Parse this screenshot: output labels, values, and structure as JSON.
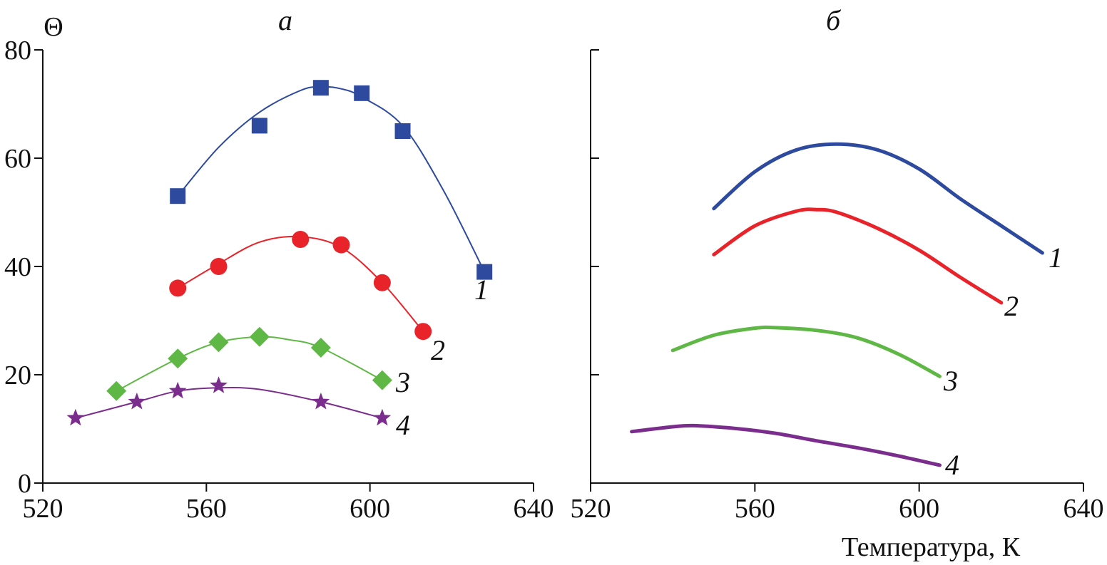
{
  "chart_data": [
    {
      "type": "line",
      "panel_label": "а",
      "ylabel": "Θ",
      "xlabel": "",
      "xlim": [
        520,
        640
      ],
      "ylim": [
        0,
        80
      ],
      "x_ticks": [
        "520",
        "560",
        "600",
        "640"
      ],
      "y_ticks": [
        "0",
        "20",
        "40",
        "60",
        "80"
      ],
      "series": [
        {
          "name": "1",
          "color": "#2e4a9e",
          "marker": "square",
          "points": [
            [
              553,
              53
            ],
            [
              573,
              66
            ],
            [
              588,
              73
            ],
            [
              598,
              72
            ],
            [
              608,
              65
            ],
            [
              628,
              39
            ]
          ],
          "curve": [
            [
              553,
              53
            ],
            [
              563,
              62
            ],
            [
              573,
              68.5
            ],
            [
              583,
              72.5
            ],
            [
              588,
              73.2
            ],
            [
              593,
              72.8
            ],
            [
              598,
              71.3
            ],
            [
              608,
              66
            ],
            [
              618,
              54
            ],
            [
              628,
              39
            ]
          ]
        },
        {
          "name": "2",
          "color": "#e8232a",
          "marker": "circle",
          "points": [
            [
              553,
              36
            ],
            [
              563,
              40
            ],
            [
              583,
              45
            ],
            [
              593,
              44
            ],
            [
              603,
              37
            ],
            [
              613,
              28
            ]
          ],
          "curve": [
            [
              553,
              36
            ],
            [
              563,
              40.5
            ],
            [
              573,
              44.5
            ],
            [
              583,
              45.5
            ],
            [
              593,
              43.5
            ],
            [
              603,
              37
            ],
            [
              613,
              28
            ]
          ]
        },
        {
          "name": "3",
          "color": "#5fb846",
          "marker": "diamond",
          "points": [
            [
              538,
              17
            ],
            [
              553,
              23
            ],
            [
              563,
              26
            ],
            [
              573,
              27
            ],
            [
              588,
              25
            ],
            [
              603,
              19
            ]
          ],
          "curve": [
            [
              538,
              17
            ],
            [
              553,
              23
            ],
            [
              563,
              26
            ],
            [
              573,
              27
            ],
            [
              580,
              26.5
            ],
            [
              588,
              25
            ],
            [
              603,
              19
            ]
          ]
        },
        {
          "name": "4",
          "color": "#7b2d8e",
          "marker": "star",
          "points": [
            [
              528,
              12
            ],
            [
              543,
              15
            ],
            [
              553,
              17
            ],
            [
              563,
              18
            ],
            [
              588,
              15
            ],
            [
              603,
              12
            ]
          ],
          "curve": [
            [
              528,
              12
            ],
            [
              543,
              15
            ],
            [
              553,
              17
            ],
            [
              563,
              17.6
            ],
            [
              573,
              17.3
            ],
            [
              588,
              15
            ],
            [
              603,
              12
            ]
          ]
        }
      ]
    },
    {
      "type": "line",
      "panel_label": "б",
      "ylabel": "",
      "xlabel": "Температура, К",
      "xlim": [
        520,
        640
      ],
      "ylim": [
        0,
        80
      ],
      "x_ticks": [
        "520",
        "560",
        "600",
        "640"
      ],
      "series": [
        {
          "name": "1",
          "color": "#2e4a9e",
          "curve": [
            [
              550,
              50.7
            ],
            [
              560,
              57.5
            ],
            [
              570,
              61.5
            ],
            [
              580,
              62.6
            ],
            [
              590,
              61.5
            ],
            [
              600,
              58
            ],
            [
              610,
              52.5
            ],
            [
              620,
              47.5
            ],
            [
              630,
              42.5
            ]
          ]
        },
        {
          "name": "2",
          "color": "#e8232a",
          "curve": [
            [
              550,
              42.2
            ],
            [
              560,
              47.5
            ],
            [
              570,
              50.2
            ],
            [
              575,
              50.5
            ],
            [
              580,
              50
            ],
            [
              590,
              47
            ],
            [
              600,
              43
            ],
            [
              610,
              38
            ],
            [
              620,
              33.3
            ]
          ]
        },
        {
          "name": "3",
          "color": "#5fb846",
          "curve": [
            [
              540,
              24.5
            ],
            [
              550,
              27.3
            ],
            [
              560,
              28.6
            ],
            [
              565,
              28.7
            ],
            [
              575,
              28.2
            ],
            [
              585,
              26.8
            ],
            [
              595,
              23.8
            ],
            [
              605,
              19.7
            ]
          ]
        },
        {
          "name": "4",
          "color": "#7b2d8e",
          "curve": [
            [
              530,
              9.5
            ],
            [
              540,
              10.4
            ],
            [
              545,
              10.6
            ],
            [
              555,
              10.1
            ],
            [
              565,
              9.2
            ],
            [
              575,
              7.8
            ],
            [
              585,
              6.5
            ],
            [
              595,
              5
            ],
            [
              605,
              3.3
            ]
          ]
        }
      ]
    }
  ]
}
